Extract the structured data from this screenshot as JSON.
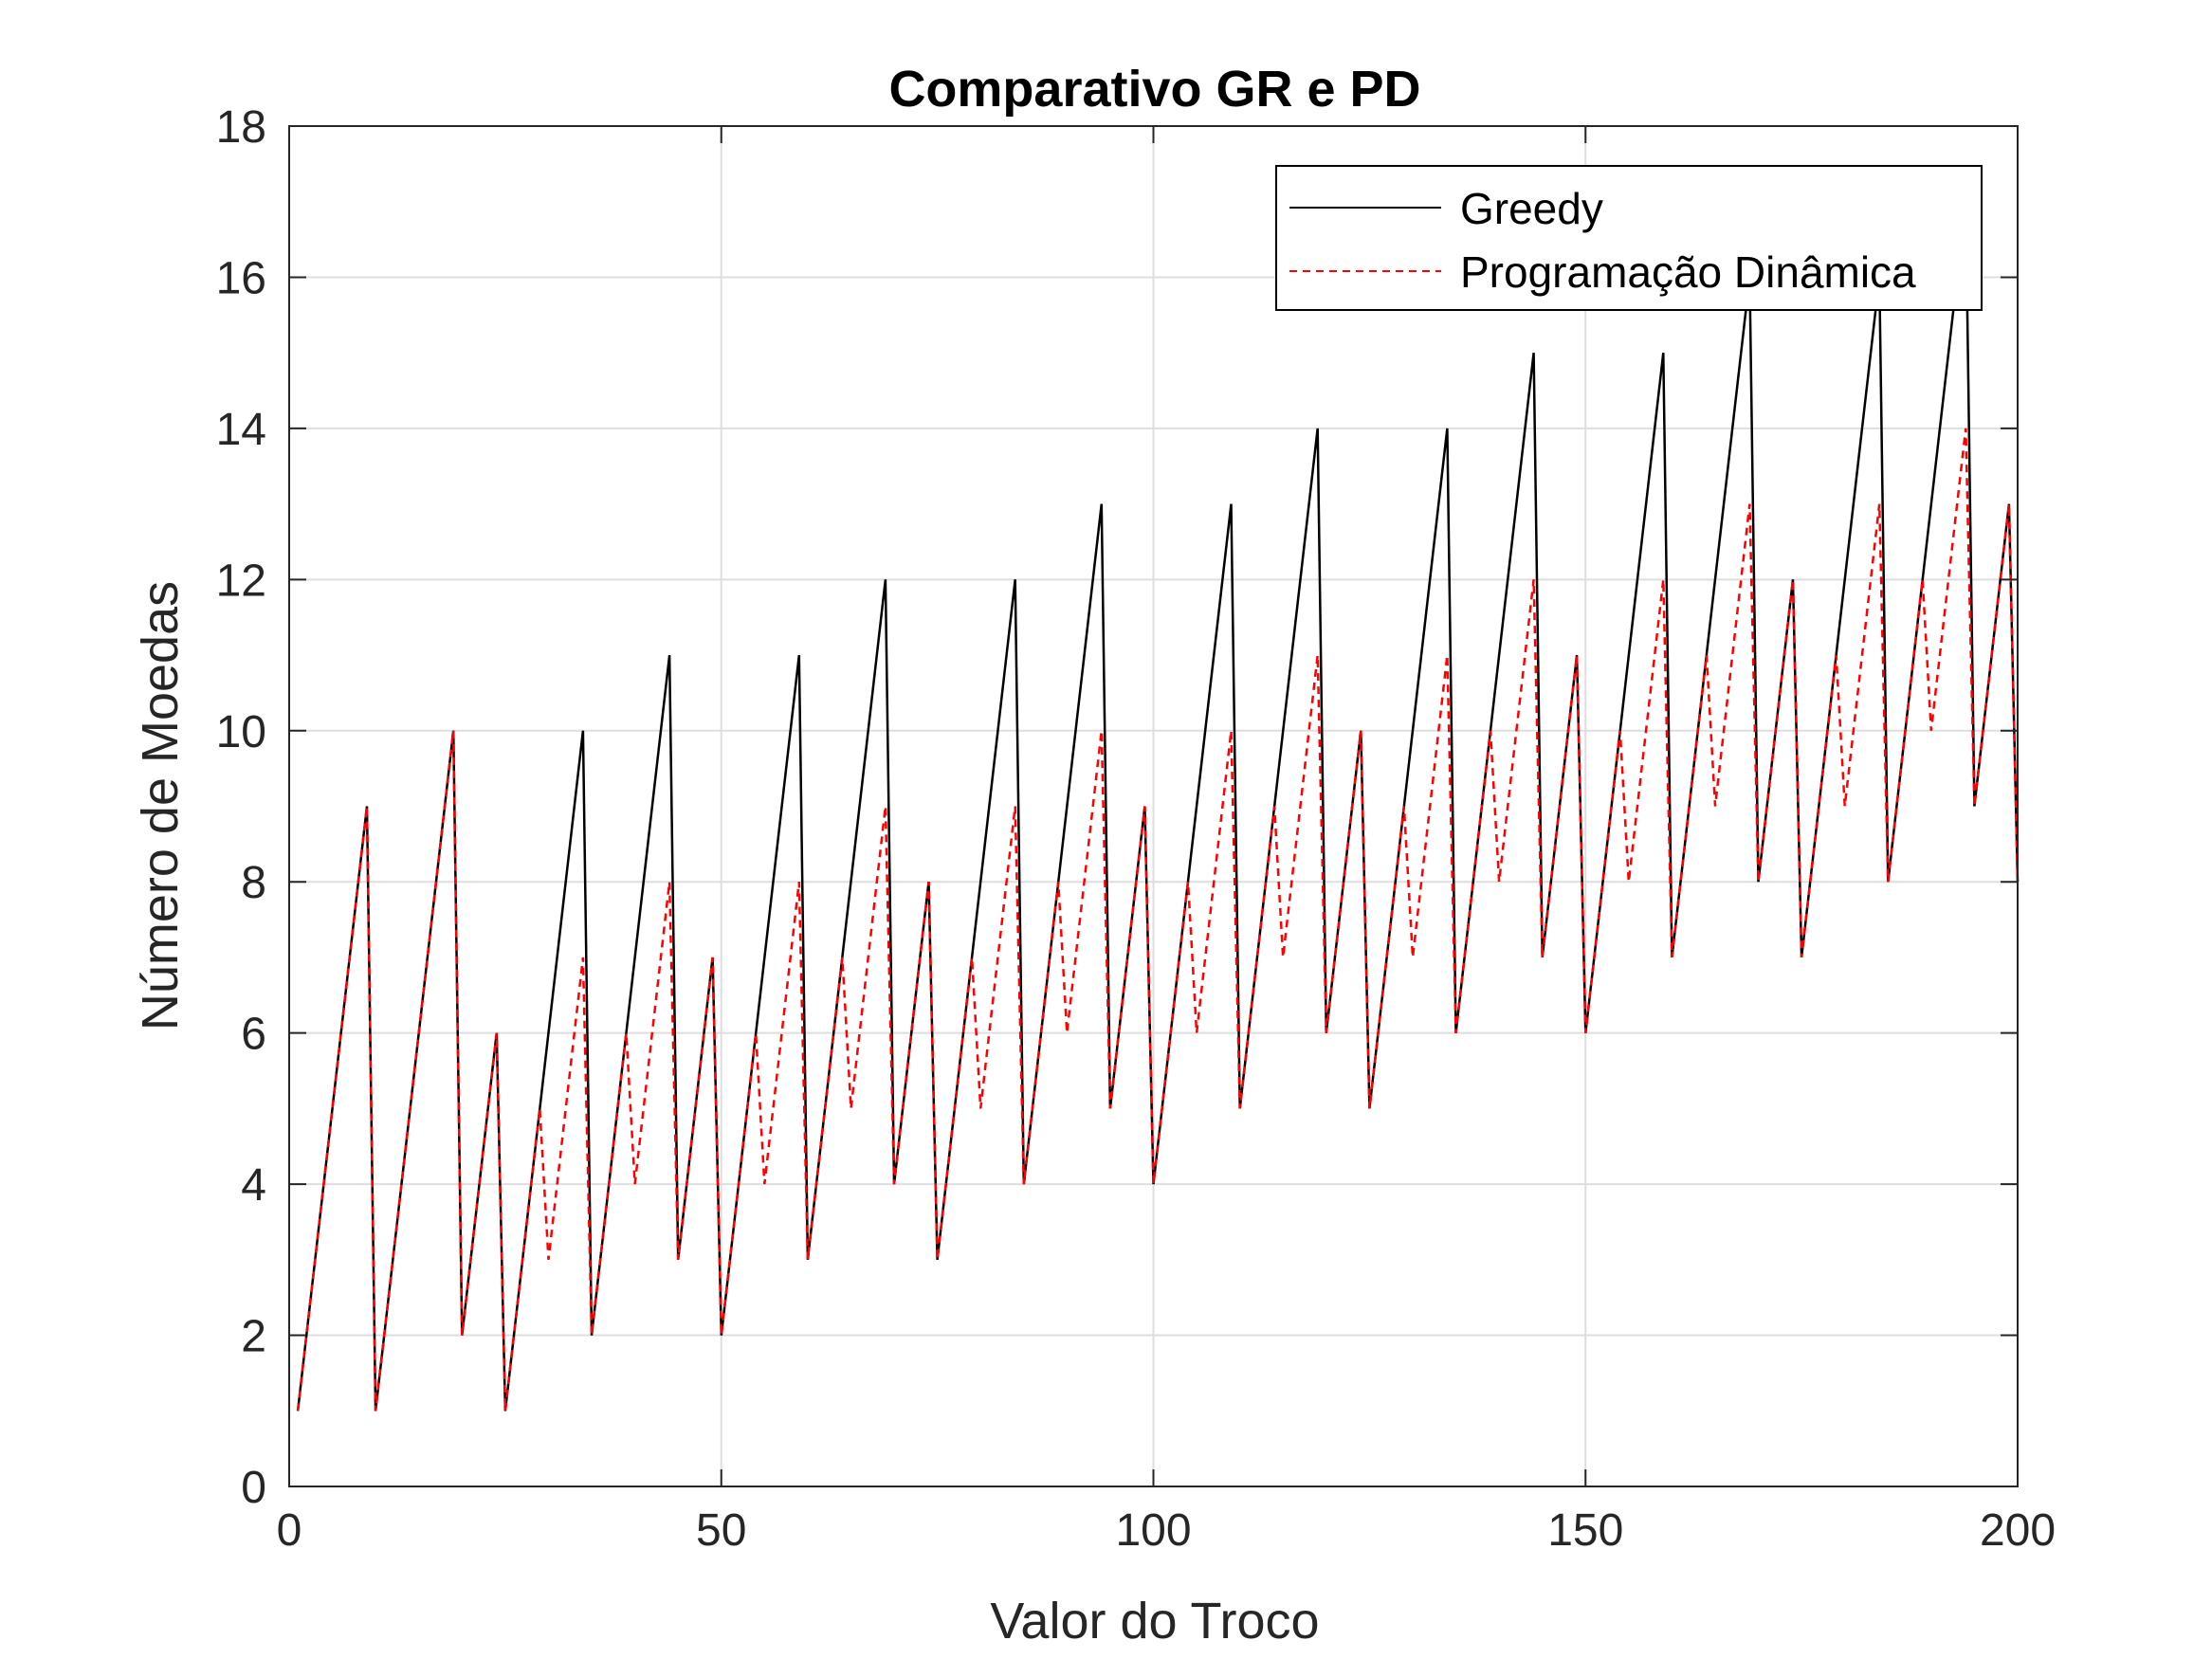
{
  "chart_data": {
    "type": "line",
    "title": "Comparativo GR e PD",
    "xlabel": "Valor do Troco",
    "ylabel": "Número de Moedas",
    "xlim": [
      0,
      200
    ],
    "ylim": [
      0,
      18
    ],
    "xticks": [
      0,
      50,
      100,
      150,
      200
    ],
    "yticks": [
      0,
      2,
      4,
      6,
      8,
      10,
      12,
      14,
      16,
      18
    ],
    "grid": true,
    "legend_position": "top-right",
    "series": [
      {
        "name": "Greedy",
        "color": "#000000",
        "style": "solid",
        "points": [
          [
            1,
            1
          ],
          [
            9,
            9
          ],
          [
            10,
            1
          ],
          [
            19,
            10
          ],
          [
            20,
            2
          ],
          [
            24,
            6
          ],
          [
            25,
            1
          ],
          [
            34,
            10
          ],
          [
            35,
            2
          ],
          [
            44,
            11
          ],
          [
            45,
            3
          ],
          [
            49,
            7
          ],
          [
            50,
            2
          ],
          [
            59,
            11
          ],
          [
            60,
            3
          ],
          [
            69,
            12
          ],
          [
            70,
            4
          ],
          [
            74,
            8
          ],
          [
            75,
            3
          ],
          [
            84,
            12
          ],
          [
            85,
            4
          ],
          [
            94,
            13
          ],
          [
            95,
            5
          ],
          [
            99,
            9
          ],
          [
            100,
            4
          ],
          [
            109,
            13
          ],
          [
            110,
            5
          ],
          [
            119,
            14
          ],
          [
            120,
            6
          ],
          [
            124,
            10
          ],
          [
            125,
            5
          ],
          [
            134,
            14
          ],
          [
            135,
            6
          ],
          [
            144,
            15
          ],
          [
            145,
            7
          ],
          [
            149,
            11
          ],
          [
            150,
            6
          ],
          [
            159,
            15
          ],
          [
            160,
            7
          ],
          [
            169,
            16
          ],
          [
            170,
            8
          ],
          [
            174,
            12
          ],
          [
            175,
            7
          ],
          [
            184,
            16
          ],
          [
            185,
            8
          ],
          [
            194,
            17
          ],
          [
            195,
            9
          ],
          [
            199,
            13
          ],
          [
            200,
            8
          ]
        ]
      },
      {
        "name": "Programação Dinâmica",
        "color": "#ff0000",
        "style": "dashed",
        "points": [
          [
            1,
            1
          ],
          [
            9,
            9
          ],
          [
            10,
            1
          ],
          [
            19,
            10
          ],
          [
            20,
            2
          ],
          [
            24,
            6
          ],
          [
            25,
            1
          ],
          [
            29,
            5
          ],
          [
            30,
            3
          ],
          [
            34,
            7
          ],
          [
            35,
            2
          ],
          [
            39,
            6
          ],
          [
            40,
            4
          ],
          [
            44,
            8
          ],
          [
            45,
            3
          ],
          [
            49,
            7
          ],
          [
            50,
            2
          ],
          [
            54,
            6
          ],
          [
            55,
            4
          ],
          [
            59,
            8
          ],
          [
            60,
            3
          ],
          [
            64,
            7
          ],
          [
            65,
            5
          ],
          [
            69,
            9
          ],
          [
            70,
            4
          ],
          [
            74,
            8
          ],
          [
            75,
            3
          ],
          [
            79,
            7
          ],
          [
            80,
            5
          ],
          [
            84,
            9
          ],
          [
            85,
            4
          ],
          [
            89,
            8
          ],
          [
            90,
            6
          ],
          [
            94,
            10
          ],
          [
            95,
            5
          ],
          [
            99,
            9
          ],
          [
            100,
            4
          ],
          [
            104,
            8
          ],
          [
            105,
            6
          ],
          [
            109,
            10
          ],
          [
            110,
            5
          ],
          [
            114,
            9
          ],
          [
            115,
            7
          ],
          [
            119,
            11
          ],
          [
            120,
            6
          ],
          [
            124,
            10
          ],
          [
            125,
            5
          ],
          [
            129,
            9
          ],
          [
            130,
            7
          ],
          [
            134,
            11
          ],
          [
            135,
            6
          ],
          [
            139,
            10
          ],
          [
            140,
            8
          ],
          [
            144,
            12
          ],
          [
            145,
            7
          ],
          [
            149,
            11
          ],
          [
            150,
            6
          ],
          [
            154,
            10
          ],
          [
            155,
            8
          ],
          [
            159,
            12
          ],
          [
            160,
            7
          ],
          [
            164,
            11
          ],
          [
            165,
            9
          ],
          [
            169,
            13
          ],
          [
            170,
            8
          ],
          [
            174,
            12
          ],
          [
            175,
            7
          ],
          [
            179,
            11
          ],
          [
            180,
            9
          ],
          [
            184,
            13
          ],
          [
            185,
            8
          ],
          [
            189,
            12
          ],
          [
            190,
            10
          ],
          [
            194,
            14
          ],
          [
            195,
            9
          ],
          [
            199,
            13
          ],
          [
            200,
            8
          ]
        ]
      }
    ]
  }
}
